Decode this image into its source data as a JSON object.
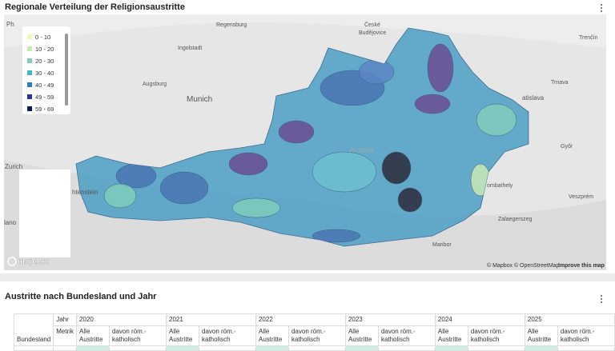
{
  "header": {
    "map_title": "Regionale Verteilung der Religionsaustritte",
    "table_title": "Austritte nach Bundesland und Jahr"
  },
  "map": {
    "legend": [
      "0 - 10",
      "10 - 20",
      "20 - 30",
      "30 - 40",
      "40 - 49",
      "49 - 59",
      "59 - 69"
    ],
    "labels": [
      "Ph",
      "Regensburg",
      "České",
      "Budějovice",
      "Ingolstadt",
      "Augsburg",
      "Munich",
      "Austria",
      "Zurich",
      "htenstein",
      "lano",
      "Trenčín",
      "Trnava",
      "atislava",
      "Győr",
      "ombathely",
      "Veszprém",
      "Zalaegerszeg",
      "Maribor"
    ],
    "logo": "mapbox",
    "attribution": "© Mapbox © OpenStreetMap",
    "improve": "Improve this map"
  },
  "table": {
    "row_header": "Bundesland",
    "year_header": "Jahr",
    "metric_header": "Metrik",
    "years": [
      "2020",
      "2021",
      "2022",
      "2023",
      "2024",
      "2025"
    ],
    "metrics": [
      "Alle Austritte",
      "davon röm.-katholisch"
    ]
  }
}
